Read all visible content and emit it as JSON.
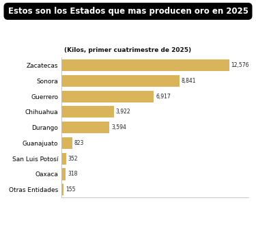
{
  "chart_data": {
    "type": "bar",
    "orientation": "horizontal",
    "title": "Estos son los Estados que mas producen oro en 2025",
    "subtitle": "(Kilos, primer cuatrimestre de 2025)",
    "categories": [
      "Zacatecas",
      "Sonora",
      "Guerrero",
      "Chihuahua",
      "Durango",
      "Guanajuato",
      "San Luis Potosí",
      "Oaxaca",
      "Otras Entidades"
    ],
    "values": [
      12576,
      8841,
      6917,
      3922,
      3594,
      823,
      352,
      318,
      155
    ],
    "value_labels": [
      "12,576",
      "8,841",
      "6,917",
      "3,922",
      "3,594",
      "823",
      "352",
      "318",
      "155"
    ],
    "color": "#d9b45a",
    "xlim": [
      0,
      14000
    ],
    "xticks": [],
    "data_labels": true,
    "tick_labels": "y",
    "grid": false
  }
}
